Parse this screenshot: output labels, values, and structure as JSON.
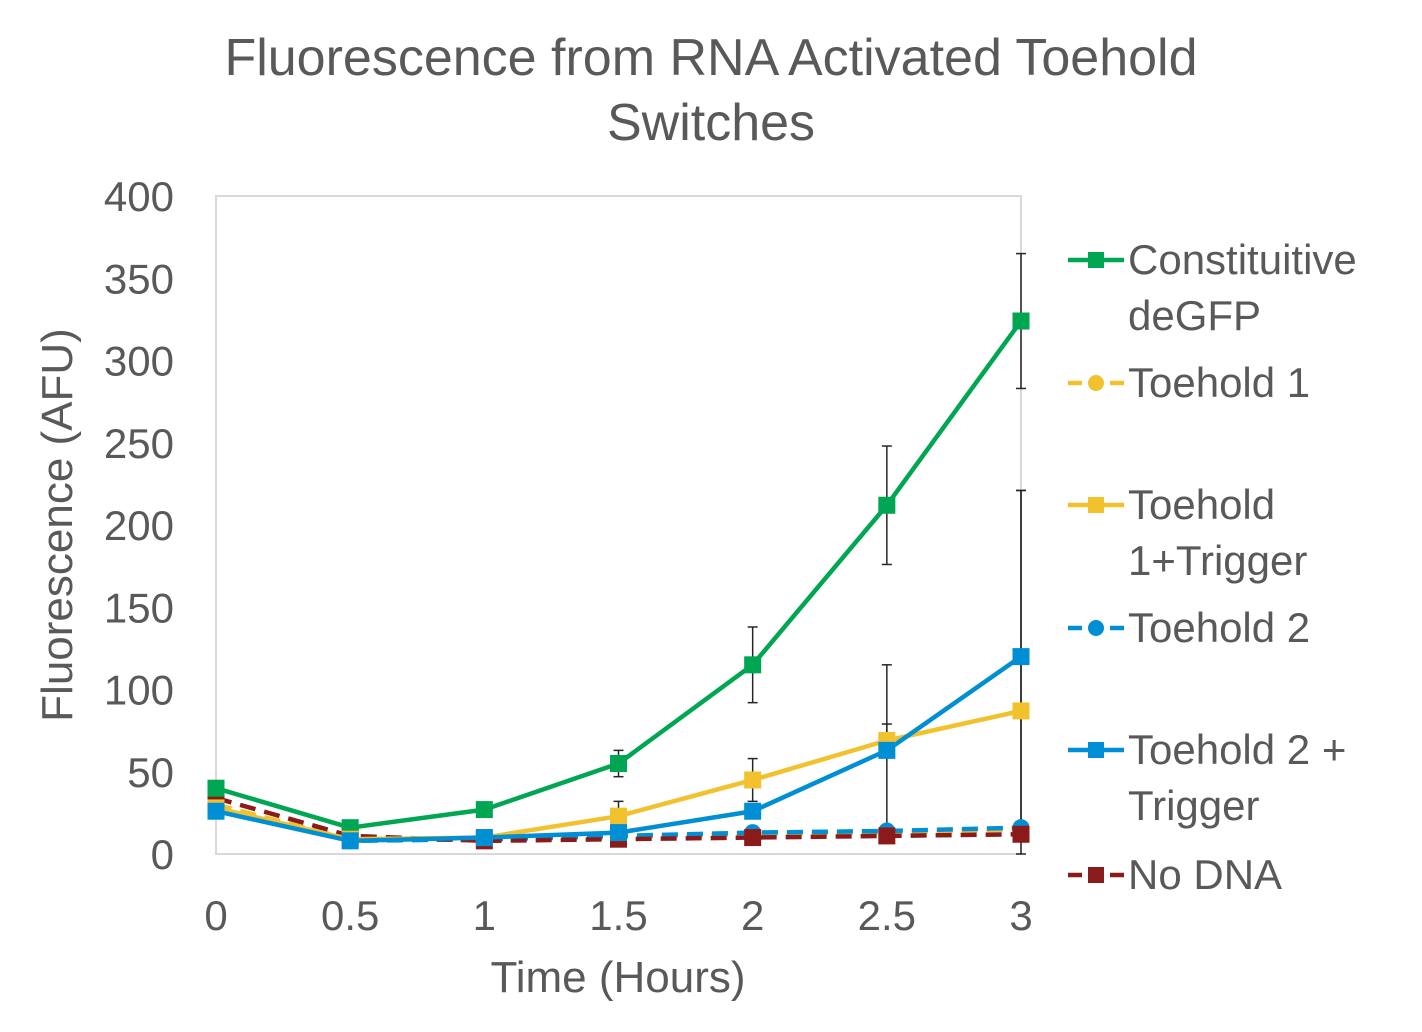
{
  "chart_data": {
    "type": "line",
    "title_lines": [
      "Fluorescence from RNA Activated Toehold",
      "Switches"
    ],
    "xlabel": "Time (Hours)",
    "ylabel": "Fluorescence (AFU)",
    "x": [
      0,
      0.5,
      1,
      1.5,
      2,
      2.5,
      3
    ],
    "x_tick_labels": [
      "0",
      "0.5",
      "1",
      "1.5",
      "2",
      "2.5",
      "3"
    ],
    "y_tick_labels": [
      "0",
      "50",
      "100",
      "150",
      "200",
      "250",
      "300",
      "350",
      "400"
    ],
    "xlim": [
      0,
      3
    ],
    "ylim": [
      0,
      400
    ],
    "grid": false,
    "legend_position": "right",
    "series": [
      {
        "name_lines": [
          "Constituitive",
          "deGFP"
        ],
        "color": "#00a651",
        "marker": "square",
        "dash": "solid",
        "values": [
          40,
          16,
          27,
          55,
          115,
          212,
          324
        ],
        "error": [
          null,
          null,
          null,
          8,
          23,
          36,
          41
        ]
      },
      {
        "name_lines": [
          "Toehold 1"
        ],
        "color": "#f2c12e",
        "marker": "circle",
        "dash": "dashed",
        "values": [
          30,
          9,
          9,
          10,
          12,
          13,
          15
        ],
        "error": [
          null,
          null,
          null,
          null,
          null,
          null,
          null
        ]
      },
      {
        "name_lines": [
          "Toehold",
          "1+Trigger"
        ],
        "color": "#f2c12e",
        "marker": "square",
        "dash": "solid",
        "values": [
          28,
          9,
          10,
          23,
          45,
          69,
          87
        ],
        "error": [
          null,
          null,
          null,
          9,
          13,
          10,
          134
        ]
      },
      {
        "name_lines": [
          "Toehold 2"
        ],
        "color": "#008fd5",
        "marker": "circle",
        "dash": "dashed",
        "values": [
          28,
          8,
          9,
          11,
          13,
          14,
          16
        ],
        "error": [
          null,
          null,
          null,
          null,
          null,
          null,
          null
        ]
      },
      {
        "name_lines": [
          "Toehold 2 +",
          "Trigger"
        ],
        "color": "#008fd5",
        "marker": "square",
        "dash": "solid",
        "values": [
          26,
          8,
          10,
          13,
          26,
          63,
          120
        ],
        "error": [
          null,
          null,
          null,
          null,
          null,
          52,
          101
        ]
      },
      {
        "name_lines": [
          "No DNA"
        ],
        "color": "#8b1a1a",
        "marker": "square",
        "dash": "dashed",
        "values": [
          34,
          11,
          8,
          9,
          10,
          11,
          12
        ],
        "error": [
          null,
          null,
          null,
          null,
          null,
          null,
          null
        ]
      }
    ]
  }
}
